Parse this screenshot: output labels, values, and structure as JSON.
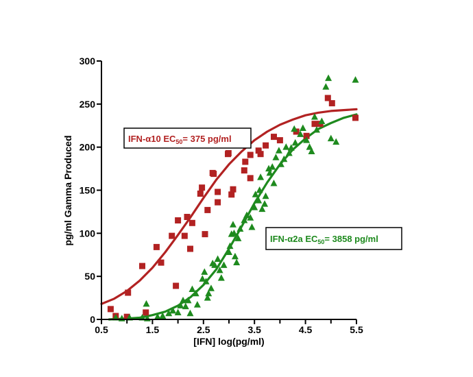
{
  "chart_data": {
    "type": "scatter",
    "title": "",
    "xlabel": "[IFN] log(pg/ml)",
    "ylabel": "pg/ml Gamma Produced",
    "xlim": [
      0.5,
      5.5
    ],
    "ylim": [
      0,
      300
    ],
    "xticks": [
      0.5,
      1.5,
      2.5,
      3.5,
      4.5,
      5.5
    ],
    "xtick_labels": [
      "0.5",
      "1.5",
      "2.5",
      "3.5",
      "4.5",
      "5.5"
    ],
    "yticks": [
      0,
      50,
      100,
      150,
      200,
      250,
      300
    ],
    "ytick_labels": [
      "0",
      "50",
      "100",
      "150",
      "200",
      "250",
      "300"
    ],
    "grid": false,
    "legend": "none",
    "series": [
      {
        "marker": "square",
        "color": "#b22222",
        "points": [
          [
            0.68,
            12
          ],
          [
            0.78,
            4
          ],
          [
            1.0,
            3
          ],
          [
            1.02,
            31
          ],
          [
            1.3,
            62
          ],
          [
            1.37,
            8
          ],
          [
            1.58,
            84
          ],
          [
            1.67,
            66
          ],
          [
            1.88,
            97
          ],
          [
            1.96,
            39
          ],
          [
            2.0,
            115
          ],
          [
            2.13,
            97
          ],
          [
            2.18,
            119
          ],
          [
            2.24,
            82
          ],
          [
            2.28,
            112
          ],
          [
            2.44,
            146
          ],
          [
            2.47,
            153
          ],
          [
            2.53,
            99
          ],
          [
            2.58,
            127
          ],
          [
            2.68,
            170
          ],
          [
            2.7,
            169
          ],
          [
            2.78,
            136
          ],
          [
            2.78,
            148
          ],
          [
            2.98,
            192
          ],
          [
            2.99,
            193
          ],
          [
            3.05,
            145
          ],
          [
            3.08,
            151
          ],
          [
            3.3,
            173
          ],
          [
            3.32,
            183
          ],
          [
            3.42,
            164
          ],
          [
            3.42,
            191
          ],
          [
            3.58,
            196
          ],
          [
            3.62,
            192
          ],
          [
            3.72,
            202
          ],
          [
            3.88,
            212
          ],
          [
            4.0,
            208
          ],
          [
            4.32,
            218
          ],
          [
            4.52,
            213
          ],
          [
            4.68,
            227
          ],
          [
            4.79,
            227
          ],
          [
            4.94,
            257
          ],
          [
            5.02,
            251
          ],
          [
            5.48,
            234
          ]
        ],
        "curve": [
          [
            0.5,
            18
          ],
          [
            0.75,
            24
          ],
          [
            1.0,
            33
          ],
          [
            1.25,
            45
          ],
          [
            1.5,
            60
          ],
          [
            1.75,
            78
          ],
          [
            2.0,
            98
          ],
          [
            2.25,
            119
          ],
          [
            2.5,
            141
          ],
          [
            2.75,
            162
          ],
          [
            3.0,
            180
          ],
          [
            3.25,
            195
          ],
          [
            3.5,
            208
          ],
          [
            3.75,
            218
          ],
          [
            4.0,
            226
          ],
          [
            4.25,
            232
          ],
          [
            4.5,
            237
          ],
          [
            4.75,
            240
          ],
          [
            5.0,
            242
          ],
          [
            5.25,
            243
          ],
          [
            5.5,
            244
          ]
        ]
      },
      {
        "marker": "triangle",
        "color": "#1e8a1e",
        "points": [
          [
            0.78,
            2
          ],
          [
            0.9,
            1
          ],
          [
            1.05,
            2
          ],
          [
            1.3,
            2
          ],
          [
            1.38,
            18
          ],
          [
            1.4,
            1
          ],
          [
            1.6,
            3
          ],
          [
            1.7,
            4
          ],
          [
            1.82,
            7
          ],
          [
            1.9,
            10
          ],
          [
            2.0,
            8
          ],
          [
            2.05,
            16
          ],
          [
            2.1,
            22
          ],
          [
            2.15,
            15
          ],
          [
            2.2,
            22
          ],
          [
            2.24,
            7
          ],
          [
            2.28,
            35
          ],
          [
            2.35,
            30
          ],
          [
            2.38,
            17
          ],
          [
            2.48,
            47
          ],
          [
            2.52,
            55
          ],
          [
            2.55,
            44
          ],
          [
            2.58,
            25
          ],
          [
            2.6,
            30
          ],
          [
            2.65,
            36
          ],
          [
            2.68,
            65
          ],
          [
            2.72,
            63
          ],
          [
            2.78,
            70
          ],
          [
            2.82,
            57
          ],
          [
            2.85,
            48
          ],
          [
            2.9,
            63
          ],
          [
            3.0,
            78
          ],
          [
            3.02,
            85
          ],
          [
            3.05,
            99
          ],
          [
            3.08,
            110
          ],
          [
            3.1,
            100
          ],
          [
            3.12,
            73
          ],
          [
            3.15,
            66
          ],
          [
            3.18,
            94
          ],
          [
            3.22,
            105
          ],
          [
            3.3,
            115
          ],
          [
            3.35,
            121
          ],
          [
            3.42,
            118
          ],
          [
            3.45,
            107
          ],
          [
            3.5,
            130
          ],
          [
            3.52,
            145
          ],
          [
            3.58,
            138
          ],
          [
            3.6,
            150
          ],
          [
            3.62,
            165
          ],
          [
            3.65,
            128
          ],
          [
            3.7,
            134
          ],
          [
            3.72,
            143
          ],
          [
            3.78,
            175
          ],
          [
            3.8,
            170
          ],
          [
            3.85,
            177
          ],
          [
            3.88,
            158
          ],
          [
            3.92,
            188
          ],
          [
            3.98,
            196
          ],
          [
            4.02,
            180
          ],
          [
            4.08,
            186
          ],
          [
            4.12,
            200
          ],
          [
            4.18,
            193
          ],
          [
            4.22,
            199
          ],
          [
            4.28,
            221
          ],
          [
            4.3,
            205
          ],
          [
            4.4,
            215
          ],
          [
            4.45,
            222
          ],
          [
            4.52,
            208
          ],
          [
            4.58,
            200
          ],
          [
            4.62,
            195
          ],
          [
            4.68,
            235
          ],
          [
            4.72,
            220
          ],
          [
            4.82,
            230
          ],
          [
            4.9,
            270
          ],
          [
            4.95,
            280
          ],
          [
            5.0,
            210
          ],
          [
            5.1,
            206
          ],
          [
            5.48,
            278
          ]
        ],
        "curve": [
          [
            0.65,
            0
          ],
          [
            1.0,
            1
          ],
          [
            1.25,
            2
          ],
          [
            1.5,
            5
          ],
          [
            1.75,
            9
          ],
          [
            2.0,
            16
          ],
          [
            2.25,
            26
          ],
          [
            2.5,
            40
          ],
          [
            2.75,
            58
          ],
          [
            3.0,
            82
          ],
          [
            3.25,
            108
          ],
          [
            3.5,
            135
          ],
          [
            3.75,
            159
          ],
          [
            4.0,
            180
          ],
          [
            4.25,
            197
          ],
          [
            4.5,
            210
          ],
          [
            4.75,
            221
          ],
          [
            5.0,
            228
          ],
          [
            5.25,
            234
          ],
          [
            5.5,
            238
          ]
        ]
      }
    ],
    "annotations": [
      {
        "label": "IFN-α10 EC",
        "sub": "50",
        "suffix": "= 375 pg/ml",
        "color": "#b22222"
      },
      {
        "label": "IFN-α2a EC",
        "sub": "50",
        "suffix": "= 3858 pg/ml",
        "color": "#1e8a1e"
      }
    ]
  }
}
